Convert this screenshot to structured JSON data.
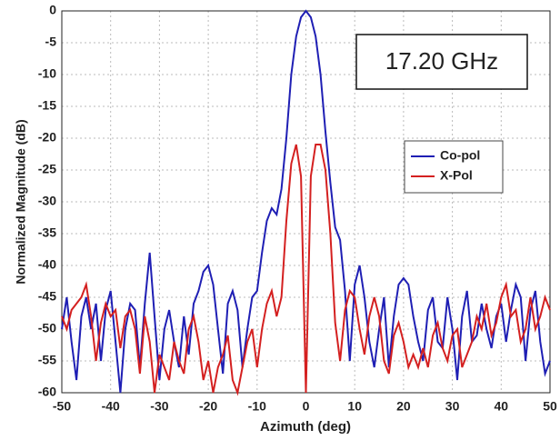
{
  "chart_data": {
    "type": "line",
    "xlabel": "Azimuth (deg)",
    "ylabel": "Normalized Magnitude (dB)",
    "annotation": "17.20 GHz",
    "x": [
      -50,
      -49,
      -48,
      -47,
      -46,
      -45,
      -44,
      -43,
      -42,
      -41,
      -40,
      -39,
      -38,
      -37,
      -36,
      -35,
      -34,
      -33,
      -32,
      -31,
      -30,
      -29,
      -28,
      -27,
      -26,
      -25,
      -24,
      -23,
      -22,
      -21,
      -20,
      -19,
      -18,
      -17,
      -16,
      -15,
      -14,
      -13,
      -12,
      -11,
      -10,
      -9,
      -8,
      -7,
      -6,
      -5,
      -4,
      -3,
      -2,
      -1,
      0,
      1,
      2,
      3,
      4,
      5,
      6,
      7,
      8,
      9,
      10,
      11,
      12,
      13,
      14,
      15,
      16,
      17,
      18,
      19,
      20,
      21,
      22,
      23,
      24,
      25,
      26,
      27,
      28,
      29,
      30,
      31,
      32,
      33,
      34,
      35,
      36,
      37,
      38,
      39,
      40,
      41,
      42,
      43,
      44,
      45,
      46,
      47,
      48,
      49,
      50
    ],
    "series": [
      {
        "name": "Co-pol",
        "color": "#1f1fb4",
        "values": [
          -50,
          -45,
          -52,
          -58,
          -48,
          -45,
          -50,
          -46,
          -55,
          -47,
          -44,
          -52,
          -60,
          -50,
          -46,
          -47,
          -56,
          -46,
          -38,
          -48,
          -58,
          -50,
          -47,
          -52,
          -56,
          -48,
          -54,
          -46,
          -44,
          -41,
          -40,
          -43,
          -50,
          -57,
          -46,
          -44,
          -47,
          -56,
          -50,
          -45,
          -44,
          -38,
          -33,
          -31,
          -32,
          -28,
          -20,
          -10,
          -4,
          -1,
          0,
          -1,
          -4,
          -10,
          -19,
          -27,
          -34,
          -36,
          -44,
          -55,
          -43,
          -40,
          -45,
          -52,
          -56,
          -50,
          -45,
          -56,
          -48,
          -43,
          -42,
          -43,
          -48,
          -52,
          -55,
          -47,
          -45,
          -52,
          -53,
          -45,
          -50,
          -58,
          -48,
          -44,
          -52,
          -51,
          -46,
          -50,
          -53,
          -48,
          -46,
          -52,
          -47,
          -43,
          -45,
          -55,
          -47,
          -44,
          -52,
          -57,
          -55
        ]
      },
      {
        "name": "X-Pol",
        "color": "#d42020",
        "values": [
          -48,
          -50,
          -47,
          -46,
          -45,
          -43,
          -48,
          -55,
          -49,
          -46,
          -48,
          -47,
          -53,
          -48,
          -47,
          -50,
          -57,
          -48,
          -52,
          -60,
          -54,
          -56,
          -58,
          -52,
          -55,
          -57,
          -50,
          -48,
          -52,
          -58,
          -55,
          -60,
          -56,
          -54,
          -51,
          -58,
          -60,
          -56,
          -52,
          -50,
          -56,
          -50,
          -46,
          -44,
          -48,
          -45,
          -33,
          -24,
          -21,
          -26,
          -60,
          -26,
          -21,
          -21,
          -25,
          -35,
          -49,
          -55,
          -47,
          -44,
          -45,
          -50,
          -54,
          -48,
          -45,
          -48,
          -55,
          -57,
          -51,
          -49,
          -52,
          -56,
          -54,
          -56,
          -53,
          -56,
          -51,
          -49,
          -53,
          -55,
          -51,
          -50,
          -56,
          -54,
          -52,
          -48,
          -50,
          -46,
          -51,
          -49,
          -45,
          -43,
          -48,
          -47,
          -52,
          -50,
          -45,
          -50,
          -48,
          -45,
          -47
        ]
      }
    ],
    "xlim": [
      -50,
      50
    ],
    "ylim": [
      -60,
      0
    ],
    "xticks": [
      -50,
      -40,
      -30,
      -20,
      -10,
      0,
      10,
      20,
      30,
      40,
      50
    ],
    "yticks": [
      0,
      -5,
      -10,
      -15,
      -20,
      -25,
      -30,
      -35,
      -40,
      -45,
      -50,
      -55,
      -60
    ],
    "grid": true
  }
}
